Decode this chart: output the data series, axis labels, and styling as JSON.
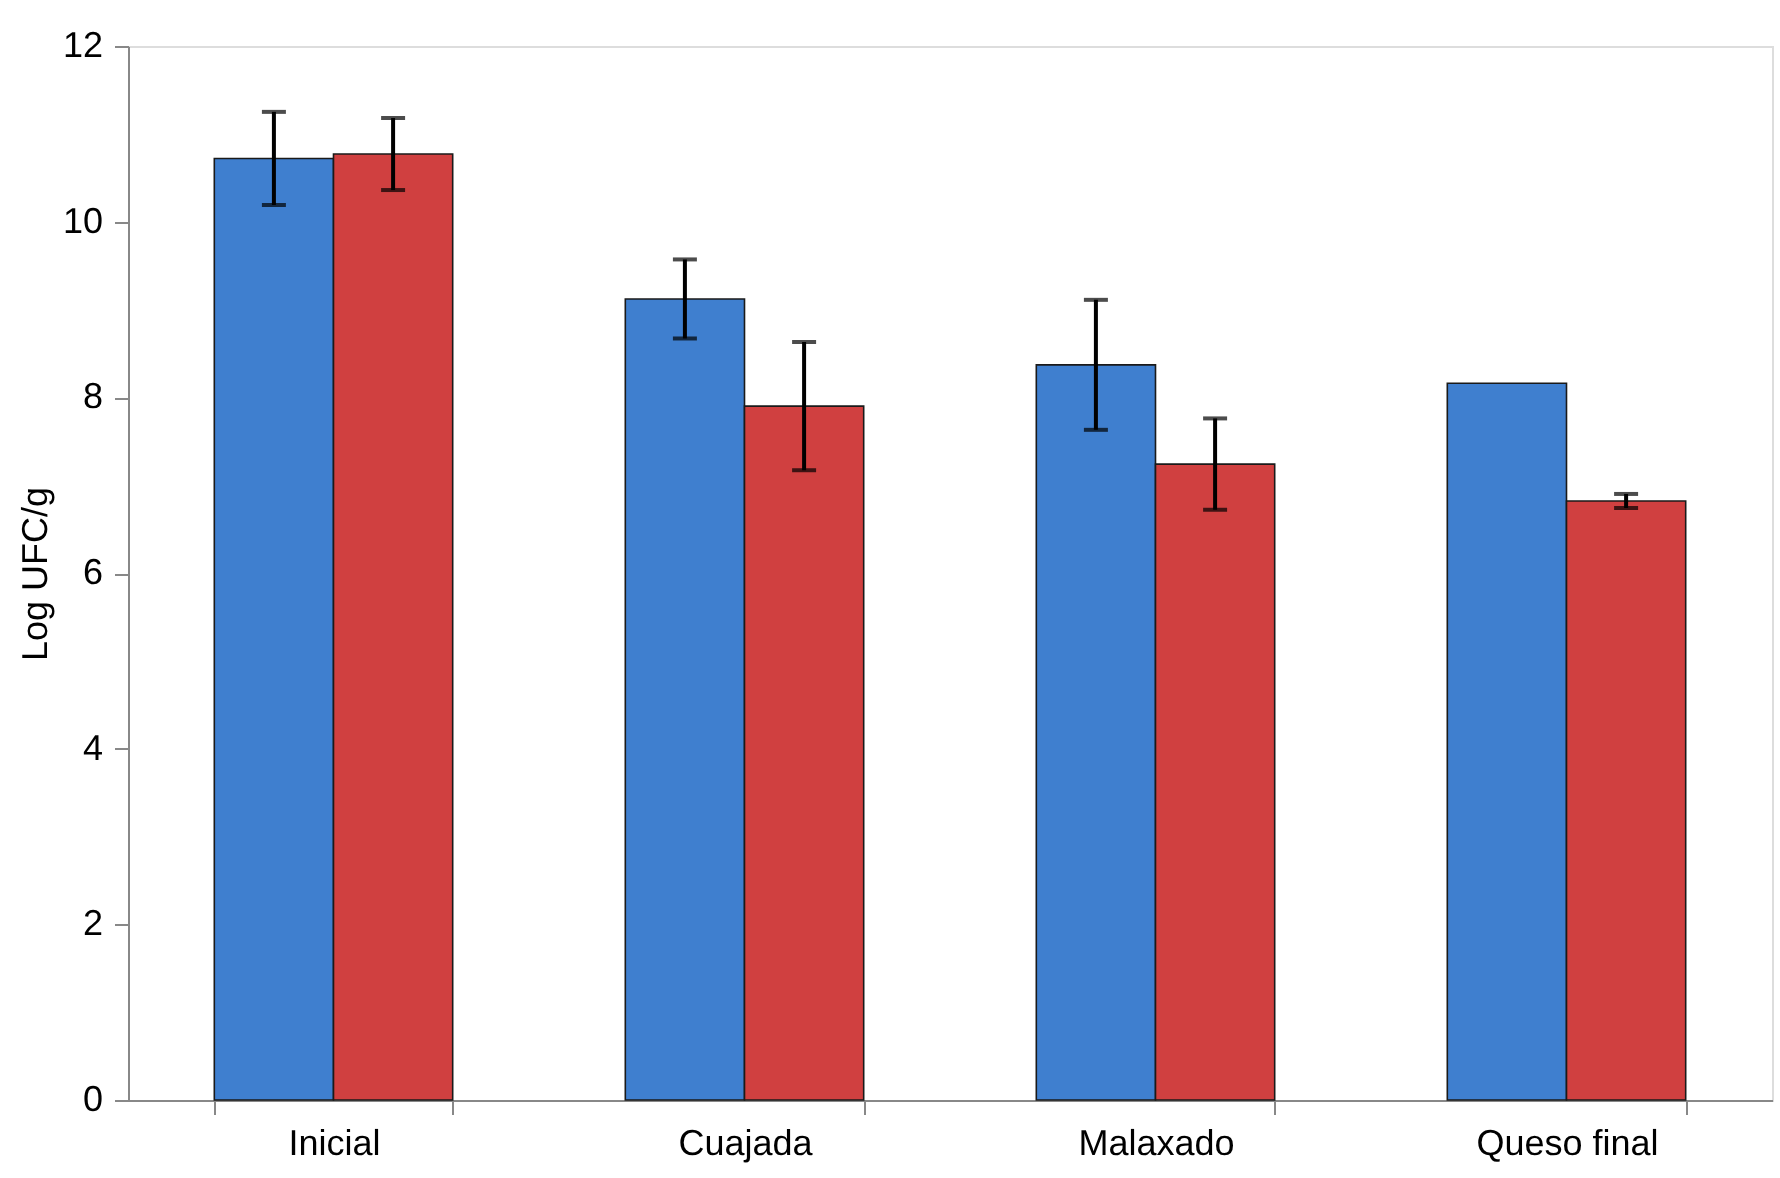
{
  "chart_data": {
    "type": "bar",
    "ylabel": "Log UFC/g",
    "categories": [
      "Inicial",
      "Cuajada",
      "Malaxado",
      "Queso final"
    ],
    "series": [
      {
        "color": "#3f7fcf",
        "values": [
          10.72,
          9.12,
          8.37,
          8.16
        ],
        "errors": [
          0.53,
          0.45,
          0.74,
          null
        ]
      },
      {
        "color": "#d04040",
        "values": [
          10.77,
          7.9,
          7.24,
          6.82
        ],
        "errors": [
          0.41,
          0.73,
          0.52,
          0.08
        ]
      }
    ],
    "ylim": [
      0,
      12
    ],
    "yticks": [
      0,
      2,
      4,
      6,
      8,
      10,
      12
    ],
    "grid": false
  }
}
